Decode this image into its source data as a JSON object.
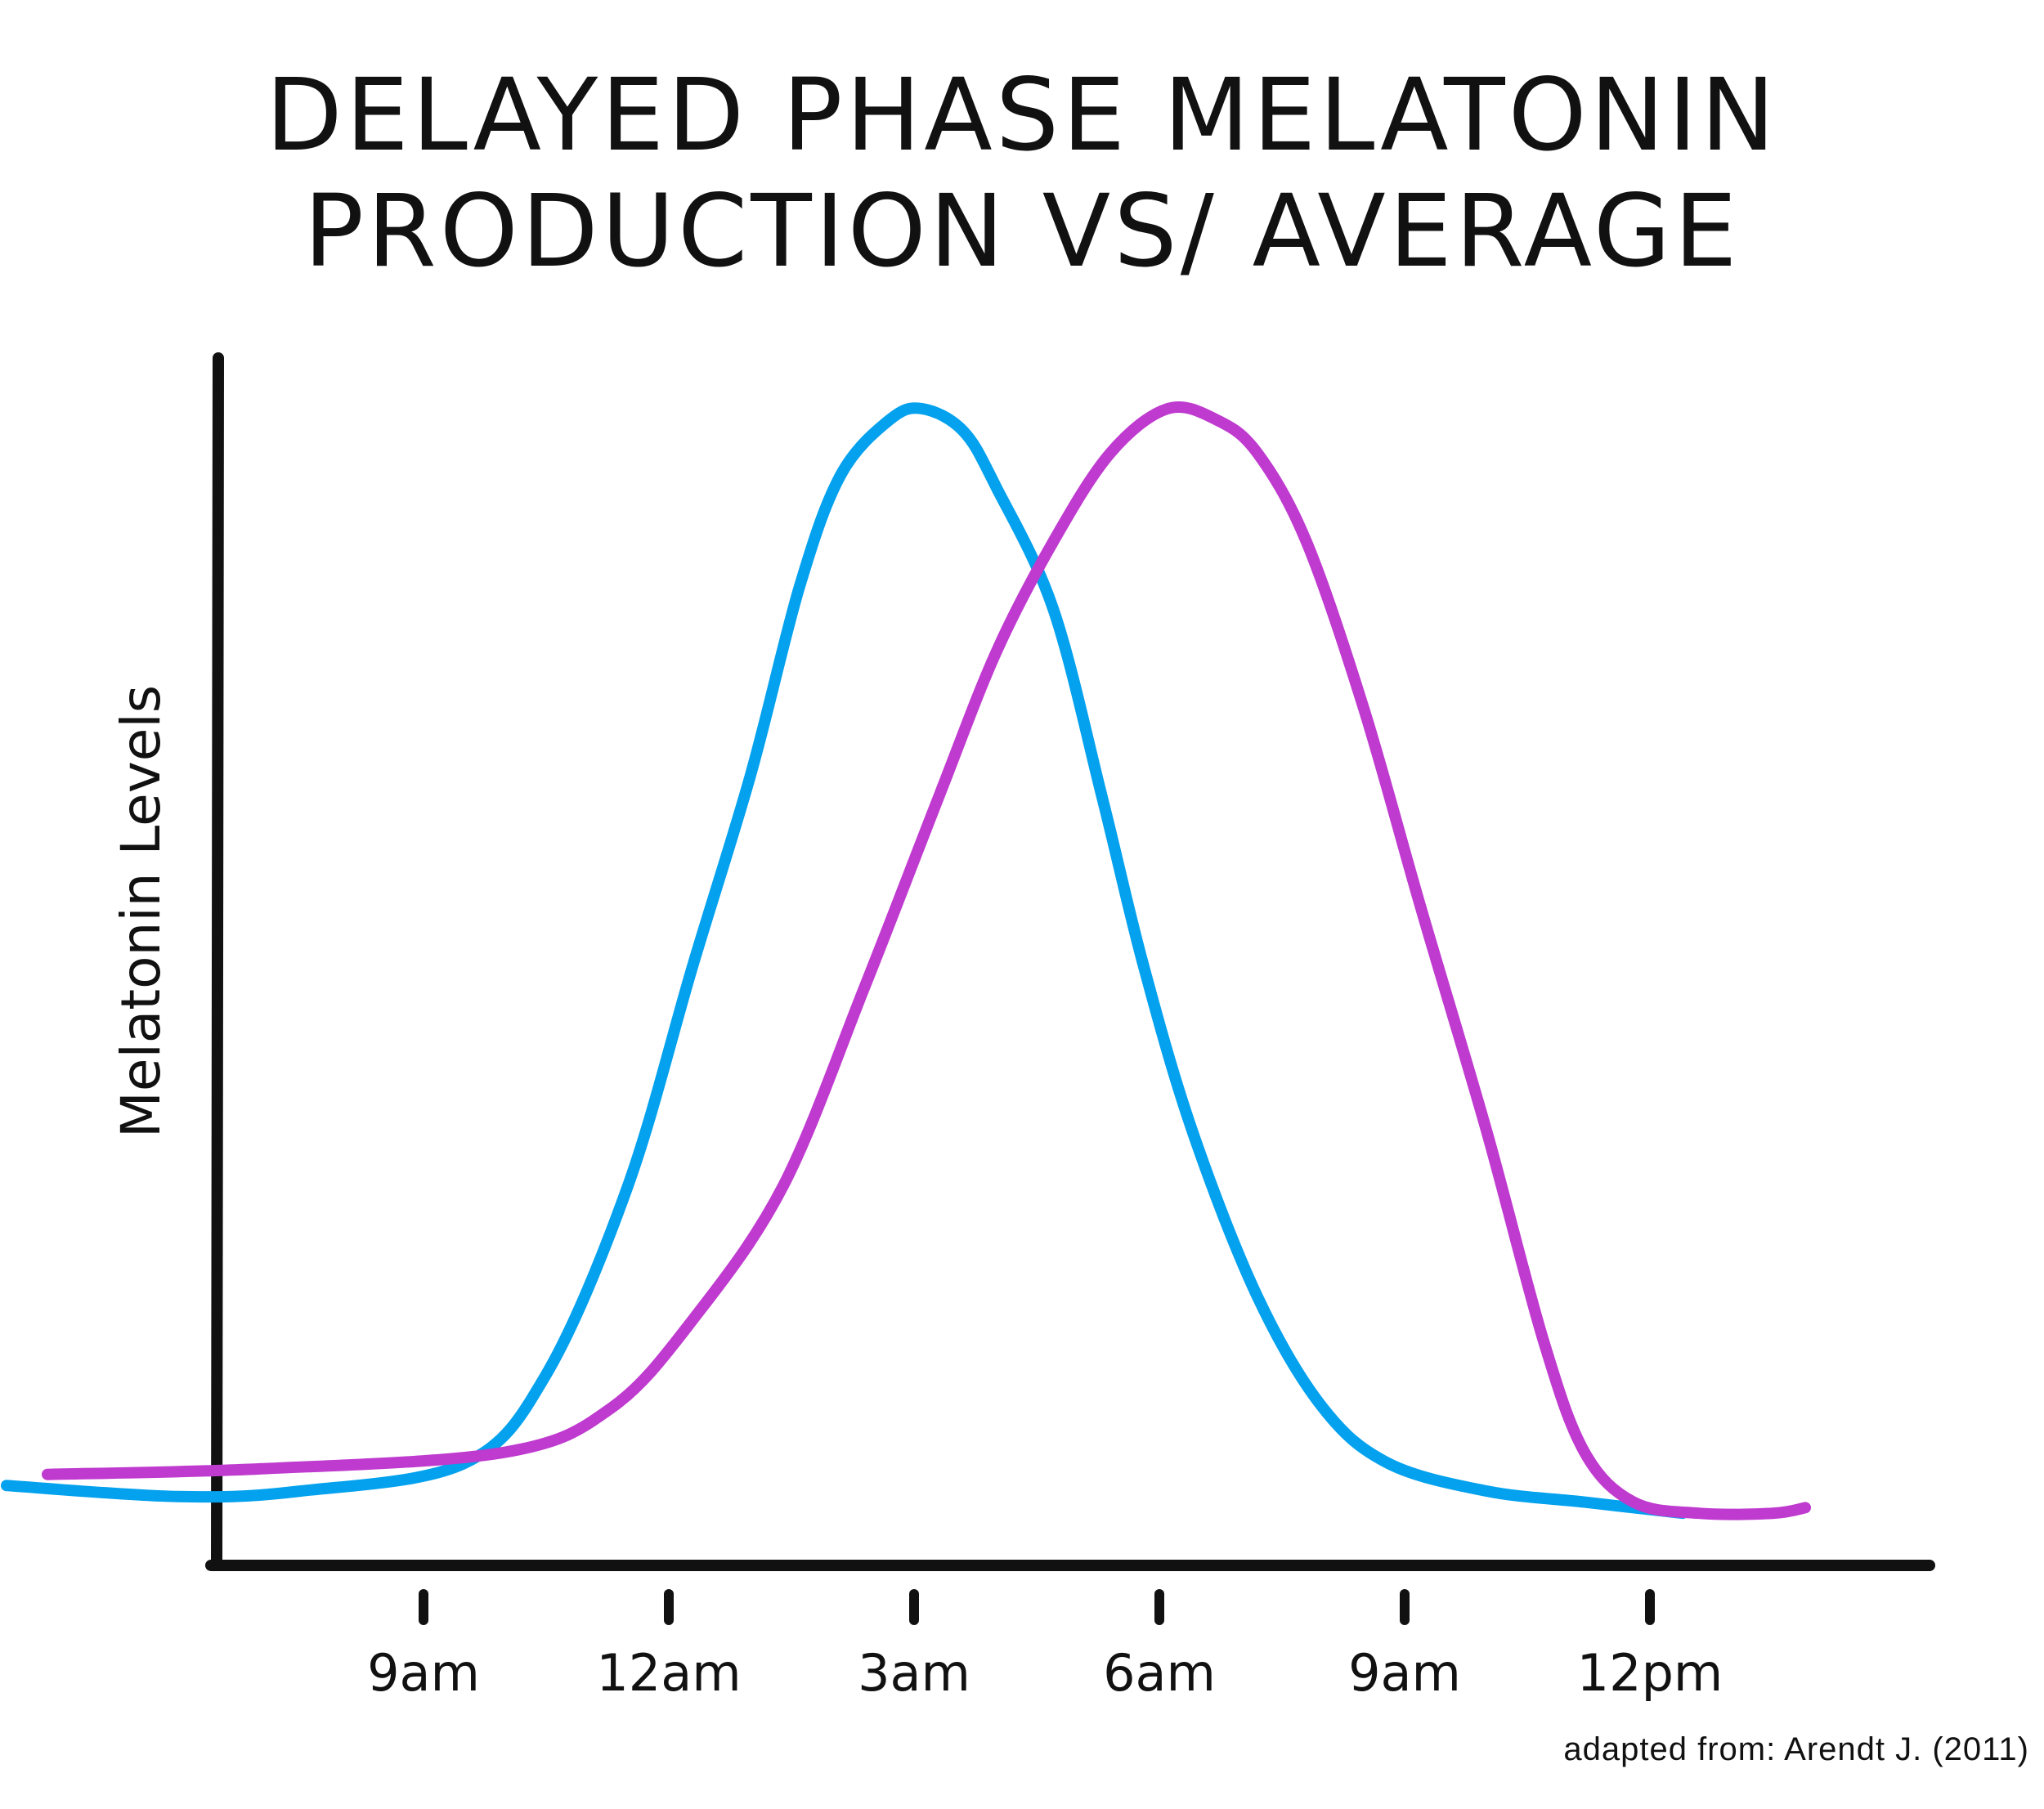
{
  "title_lines": [
    "DELAYED PHASE MELATONIN",
    "PRODUCTION VS/ AVERAGE"
  ],
  "source_note": "adapted from: Arendt J. (2011)",
  "chart_data": {
    "type": "line",
    "title": "DELAYED PHASE MELATONIN PRODUCTION VS/ AVERAGE",
    "ylabel": "Melatonin Levels",
    "xlabel": "",
    "x_ticks": [
      {
        "label": "9am",
        "hour": 0
      },
      {
        "label": "12am",
        "hour": 3
      },
      {
        "label": "3am",
        "hour": 6
      },
      {
        "label": "6am",
        "hour": 9
      },
      {
        "label": "9am",
        "hour": 12
      },
      {
        "label": "12pm",
        "hour": 15
      }
    ],
    "xlim": [
      -5,
      20
    ],
    "ylim": [
      0,
      100
    ],
    "grid": false,
    "legend": "none",
    "series": [
      {
        "color": "#03A1EE",
        "x": [
          -5.1,
          -3.0,
          -1.5,
          0.5,
          1.5,
          2.5,
          3.3,
          4.0,
          4.6,
          5.1,
          5.7,
          6.1,
          6.6,
          7.0,
          7.7,
          8.3,
          8.8,
          9.4,
          10.2,
          11.0,
          11.8,
          13.0,
          14.2,
          15.4
        ],
        "y": [
          3,
          2,
          2.5,
          5,
          13,
          30,
          50,
          67,
          84,
          94,
          99,
          100,
          98,
          93,
          82,
          65,
          50,
          35,
          20,
          10,
          5,
          2.5,
          1.5,
          0.5
        ]
      },
      {
        "color": "#BF3ACF",
        "x": [
          -4.6,
          -2.0,
          1.0,
          2.3,
          3.3,
          4.4,
          5.4,
          6.3,
          7.0,
          7.7,
          8.4,
          9.1,
          9.7,
          10.2,
          10.8,
          11.5,
          12.2,
          13.0,
          13.7,
          14.2,
          14.8,
          15.6,
          16.5,
          16.9
        ],
        "y": [
          4,
          4.5,
          6,
          10,
          18,
          30,
          48,
          65,
          78,
          88,
          96,
          100,
          99,
          96,
          88,
          73,
          55,
          35,
          16,
          6,
          1.5,
          0.5,
          0.5,
          1
        ]
      }
    ]
  }
}
